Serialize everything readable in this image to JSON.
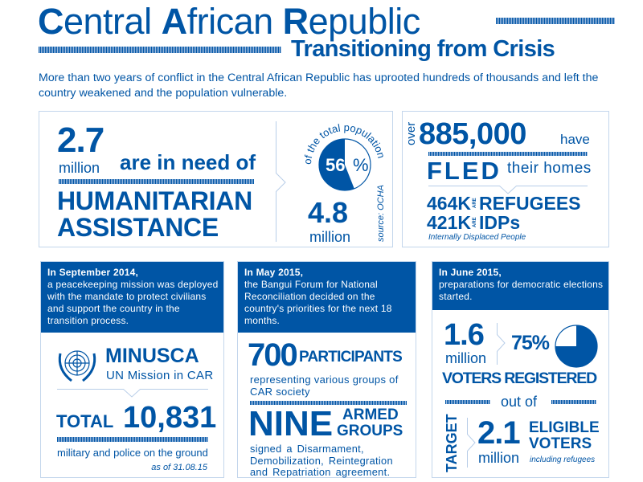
{
  "header": {
    "title_parts": [
      {
        "b": "C",
        "r": "entral "
      },
      {
        "b": "A",
        "r": "frican "
      },
      {
        "b": "R",
        "r": "epublic"
      }
    ],
    "title": "Central African Republic",
    "subtitle": "Transitioning from Crisis",
    "intro": "More than two years of conflict in the Central African Republic has uprooted hundreds of thousands and left the country weakened and the population vulnerable."
  },
  "need": {
    "number": "2.7",
    "unit": "million",
    "phrase": "are in need of",
    "line1": "HUMANITARIAN",
    "line2": "ASSISTANCE",
    "arc_text": "of the total population",
    "percent_value": "56",
    "percent_sign": "%",
    "percent": 56,
    "total": "4.8",
    "total_unit": "million",
    "source": "source: OCHA"
  },
  "fled": {
    "over": "over",
    "number": "885,000",
    "have": "have",
    "fled": "FLED",
    "their_homes": "their homes",
    "refugees_num": "464K",
    "are": "ARE",
    "refugees": "REFUGEES",
    "idps_num": "421K",
    "idps": "IDPs",
    "idps_note": "Internally Displaced People"
  },
  "panel1": {
    "date": "In September 2014,",
    "text": "a peacekeeping mission was deployed with the mandate to protect civilians and support the country in the transition process.",
    "logo_alt": "United Nations emblem",
    "org": "MINUSCA",
    "org_full": "UN Mission in CAR",
    "total_label": "TOTAL",
    "total": "10,831",
    "desc": "military and police on the ground",
    "as_of": "as of 31.08.15"
  },
  "panel2": {
    "date": "In May 2015,",
    "text": "the Bangui Forum for National Reconciliation decided on the country's priorities for the next 18 months.",
    "participants_num": "700",
    "participants": "PARTICIPANTS",
    "participants_desc": "representing various groups of CAR society",
    "groups_num": "NINE",
    "groups_l1": "ARMED",
    "groups_l2": "GROUPS",
    "groups_desc": "signed a Disarmament, Demobilization, Reintegration and Repatriation agreement."
  },
  "panel3": {
    "date": "In June 2015,",
    "text": "preparations for democratic elections started.",
    "registered": "1.6",
    "registered_unit": "million",
    "percent_label": "75%",
    "percent": 75,
    "registered_label": "VOTERS REGISTERED",
    "out_of": "out of",
    "target": "TARGET",
    "eligible": "2.1",
    "eligible_unit": "million",
    "eligible_l1": "ELIGIBLE",
    "eligible_l2": "VOTERS",
    "eligible_note": "including refugees"
  },
  "colors": {
    "primary": "#0055a5",
    "border": "#c3d6ec"
  }
}
